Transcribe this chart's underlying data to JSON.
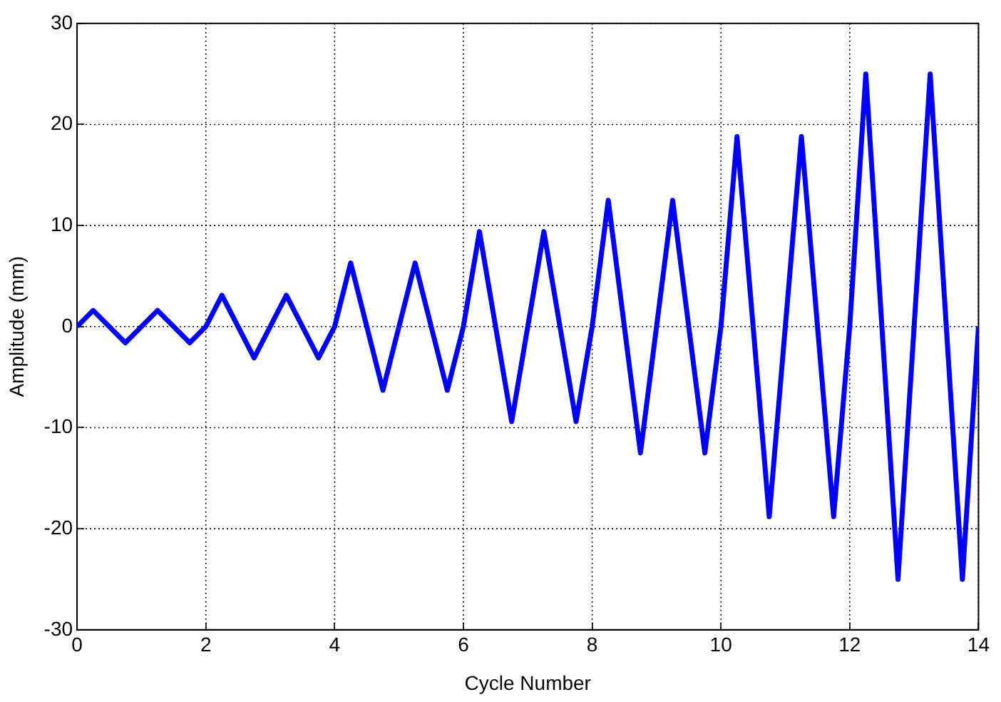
{
  "chart_data": {
    "type": "line",
    "xlabel": "Cycle Number",
    "ylabel": "Amplitude (mm)",
    "xlim": [
      0,
      14
    ],
    "ylim": [
      -30,
      30
    ],
    "xticks": [
      0,
      2,
      4,
      6,
      8,
      10,
      12,
      14
    ],
    "yticks": [
      -30,
      -20,
      -10,
      0,
      10,
      20,
      30
    ],
    "grid": true,
    "marker": "none",
    "series": [
      {
        "color": "#0000ff",
        "x": [
          0,
          0.25,
          0.75,
          1.25,
          1.75,
          2,
          2.25,
          2.75,
          3.25,
          3.75,
          4,
          4.25,
          4.75,
          5.25,
          5.75,
          6,
          6.25,
          6.75,
          7.25,
          7.75,
          8,
          8.25,
          8.75,
          9.25,
          9.75,
          10,
          10.25,
          10.75,
          11.25,
          11.75,
          12,
          12.25,
          12.75,
          13.25,
          13.75,
          14
        ],
        "values": [
          0,
          1.6,
          -1.6,
          1.6,
          -1.6,
          0,
          3.1,
          -3.1,
          3.1,
          -3.1,
          0,
          6.3,
          -6.3,
          6.3,
          -6.3,
          0,
          9.4,
          -9.4,
          9.4,
          -9.4,
          0,
          12.5,
          -12.5,
          12.5,
          -12.5,
          0,
          18.8,
          -18.8,
          18.8,
          -18.8,
          0,
          25,
          -25,
          25,
          -25,
          0
        ]
      }
    ]
  }
}
